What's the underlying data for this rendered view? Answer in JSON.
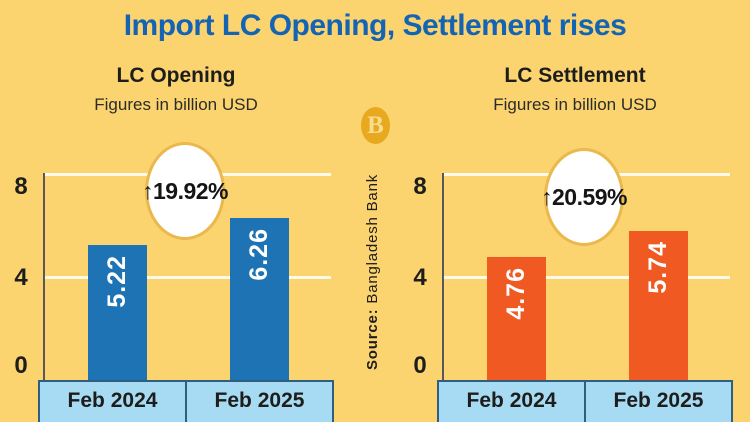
{
  "title": "Import LC Opening, Settlement rises",
  "logo": {
    "letter": "B"
  },
  "source": {
    "label": "Source:",
    "name": " Bangladesh Bank"
  },
  "colors": {
    "background": "#fbd470",
    "title_blue": "#1464b3",
    "lc_opening_bar": "#1e73b4",
    "lc_settlement_bar": "#f05a22",
    "category_strip": "#a7dbf4",
    "strip_border": "#315d7e",
    "badge_border": "#eab84c",
    "logo_gold": "#e9a91f"
  },
  "chart_data": [
    {
      "type": "bar",
      "title": "LC Opening",
      "subtitle": "Figures in billion USD",
      "categories": [
        "Feb 2024",
        "Feb 2025"
      ],
      "values": [
        5.22,
        6.26
      ],
      "value_labels": [
        "5.22",
        "6.26"
      ],
      "change_badge": "↑19.92%",
      "bar_color": "#1e73b4",
      "ylabel": "",
      "xlabel": "",
      "ylim": [
        0,
        8
      ],
      "yticks": [
        0,
        4,
        8
      ],
      "grid": true,
      "legend": "none"
    },
    {
      "type": "bar",
      "title": "LC Settlement",
      "subtitle": "Figures in billion USD",
      "categories": [
        "Feb 2024",
        "Feb 2025"
      ],
      "values": [
        4.76,
        5.74
      ],
      "value_labels": [
        "4.76",
        "5.74"
      ],
      "change_badge": "↑20.59%",
      "bar_color": "#f05a22",
      "ylabel": "",
      "xlabel": "",
      "ylim": [
        0,
        8
      ],
      "yticks": [
        0,
        4,
        8
      ],
      "grid": true,
      "legend": "none"
    }
  ]
}
